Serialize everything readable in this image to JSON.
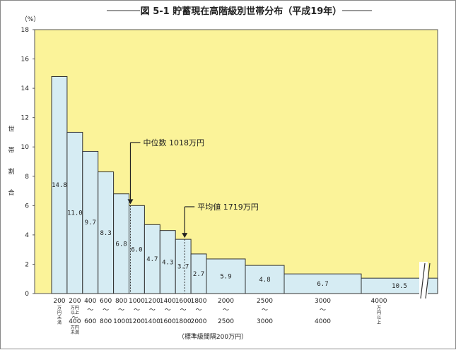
{
  "chart_data": {
    "type": "bar",
    "title": "図 5-1 貯蓄現在高階級別世帯分布（平成19年）",
    "ylabel_chars": [
      "世",
      "帯",
      "割",
      "合"
    ],
    "y_unit": "（%）",
    "ylim": [
      0,
      18
    ],
    "yticks": [
      "0",
      "2",
      "4",
      "6",
      "8",
      "10",
      "12",
      "14",
      "16",
      "18"
    ],
    "plot_bg": "#fbf399",
    "bar_fill": "#d6ecf3",
    "bins": [
      {
        "from": 0,
        "to": 200,
        "value": 14.8,
        "label": "14.8"
      },
      {
        "from": 200,
        "to": 400,
        "value": 11.0,
        "label": "11.0"
      },
      {
        "from": 400,
        "to": 600,
        "value": 9.7,
        "label": "9.7"
      },
      {
        "from": 600,
        "to": 800,
        "value": 8.3,
        "label": "8.3"
      },
      {
        "from": 800,
        "to": 1000,
        "value": 6.8,
        "label": "6.8"
      },
      {
        "from": 1000,
        "to": 1200,
        "value": 6.0,
        "label": "6.0"
      },
      {
        "from": 1200,
        "to": 1400,
        "value": 4.7,
        "label": "4.7"
      },
      {
        "from": 1400,
        "to": 1600,
        "value": 4.3,
        "label": "4.3"
      },
      {
        "from": 1600,
        "to": 1800,
        "value": 3.7,
        "label": "3.7"
      },
      {
        "from": 1800,
        "to": 2000,
        "value": 2.7,
        "label": "2.7"
      },
      {
        "from": 2000,
        "to": 2500,
        "value": 5.9,
        "label": "5.9",
        "height": 2.36
      },
      {
        "from": 2500,
        "to": 3000,
        "value": 4.8,
        "label": "4.8",
        "height": 1.92
      },
      {
        "from": 3000,
        "to": 4000,
        "value": 6.7,
        "label": "6.7",
        "height": 1.34
      },
      {
        "from": 4000,
        "to": null,
        "value": 10.5,
        "label": "10.5",
        "height": 1.05
      }
    ],
    "x_labels": [
      {
        "top": "200",
        "bottom": "",
        "sub_top": [
          "万",
          "円"
        ],
        "sub_bottom": [
          "未",
          "満"
        ]
      },
      {
        "top": "200",
        "bottom": "400",
        "sub_top": [
          "万円",
          "以上"
        ],
        "sub_bottom": [
          "万円",
          "未満"
        ]
      },
      {
        "top": "400",
        "bottom": "600"
      },
      {
        "top": "600",
        "bottom": "800"
      },
      {
        "top": "800",
        "bottom": "1000"
      },
      {
        "top": "1000",
        "bottom": "1200"
      },
      {
        "top": "1200",
        "bottom": "1400"
      },
      {
        "top": "1400",
        "bottom": "1600"
      },
      {
        "top": "1600",
        "bottom": "1800"
      },
      {
        "top": "1800",
        "bottom": "2000"
      },
      {
        "top": "2000",
        "bottom": "2500"
      },
      {
        "top": "2500",
        "bottom": "3000"
      },
      {
        "top": "3000",
        "bottom": "4000"
      },
      {
        "top": "4000",
        "bottom": "",
        "sub_top": [
          "万",
          "円",
          "以",
          "上"
        ]
      }
    ],
    "range_mark": "〜",
    "xlabel": "（標準級間隔200万円）",
    "annotations": [
      {
        "label": "中位数 1018万円",
        "x_value": 1018,
        "arrow_to": 6.0
      },
      {
        "label": "平均値 1719万円",
        "x_value": 1719,
        "arrow_to": 3.7
      }
    ]
  }
}
